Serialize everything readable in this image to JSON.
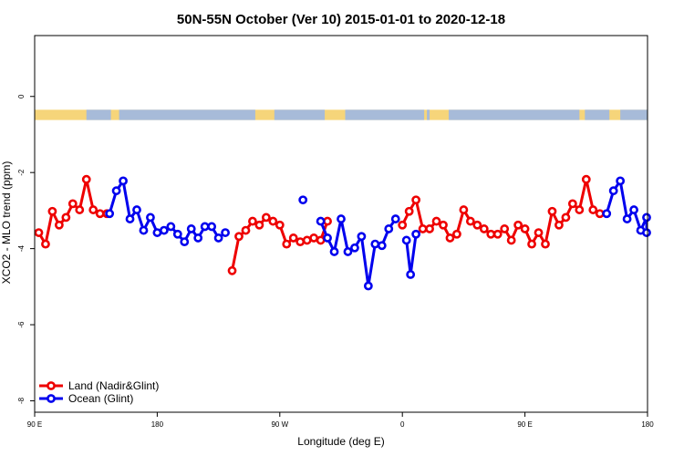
{
  "chart_data": {
    "type": "line",
    "title": "50N-55N October (Ver 10)   2015-01-01 to 2020-12-18",
    "xlabel": "Longitude (deg E)",
    "ylabel": "XCO2 - MLO trend (ppm)",
    "xlim": [
      90,
      540
    ],
    "ylim": [
      -8.3,
      1.6
    ],
    "x_ticks": [
      {
        "value": 90,
        "label": "90 E"
      },
      {
        "value": 180,
        "label": "180"
      },
      {
        "value": 270,
        "label": "90 W"
      },
      {
        "value": 360,
        "label": "0"
      },
      {
        "value": 450,
        "label": "90 E"
      },
      {
        "value": 540,
        "label": "180"
      }
    ],
    "y_ticks": [
      {
        "value": 0,
        "label": "0"
      },
      {
        "value": -2,
        "label": "-2"
      },
      {
        "value": -4,
        "label": "-4"
      },
      {
        "value": -6,
        "label": "-6"
      },
      {
        "value": -8,
        "label": "-8"
      }
    ],
    "legend_position": "bottom-left",
    "land_strip": {
      "y_range": [
        -0.35,
        -0.62
      ],
      "land_color": "#f6d57a",
      "ocean_color": "#a7bbd9"
    },
    "series": [
      {
        "name": "Land (Nadir&Glint)",
        "color": "#ee0000",
        "segments": [
          [
            [
              93,
              -3.58
            ],
            [
              98,
              -3.88
            ],
            [
              103,
              -3.02
            ],
            [
              108,
              -3.38
            ],
            [
              113,
              -3.18
            ],
            [
              118,
              -2.82
            ],
            [
              123,
              -2.98
            ],
            [
              128,
              -2.18
            ],
            [
              133,
              -2.98
            ],
            [
              138,
              -3.08
            ],
            [
              143,
              -3.08
            ]
          ],
          [
            [
              235,
              -4.58
            ],
            [
              240,
              -3.68
            ],
            [
              245,
              -3.52
            ],
            [
              250,
              -3.28
            ],
            [
              255,
              -3.38
            ],
            [
              260,
              -3.18
            ],
            [
              265,
              -3.28
            ],
            [
              270,
              -3.38
            ],
            [
              275,
              -3.88
            ],
            [
              280,
              -3.72
            ],
            [
              285,
              -3.82
            ],
            [
              290,
              -3.78
            ],
            [
              295,
              -3.72
            ],
            [
              300,
              -3.78
            ],
            [
              305,
              -3.28
            ]
          ],
          [
            [
              360,
              -3.38
            ],
            [
              365,
              -3.02
            ],
            [
              370,
              -2.72
            ],
            [
              375,
              -3.48
            ],
            [
              380,
              -3.48
            ],
            [
              385,
              -3.28
            ],
            [
              390,
              -3.38
            ],
            [
              395,
              -3.72
            ],
            [
              400,
              -3.62
            ],
            [
              405,
              -2.98
            ],
            [
              410,
              -3.28
            ],
            [
              415,
              -3.38
            ],
            [
              420,
              -3.48
            ],
            [
              425,
              -3.62
            ],
            [
              430,
              -3.62
            ],
            [
              435,
              -3.48
            ],
            [
              440,
              -3.78
            ],
            [
              445,
              -3.38
            ],
            [
              450,
              -3.48
            ],
            [
              455,
              -3.88
            ],
            [
              460,
              -3.58
            ],
            [
              465,
              -3.88
            ],
            [
              470,
              -3.02
            ],
            [
              475,
              -3.38
            ],
            [
              480,
              -3.18
            ],
            [
              485,
              -2.82
            ],
            [
              490,
              -2.98
            ],
            [
              495,
              -2.18
            ],
            [
              500,
              -2.98
            ],
            [
              505,
              -3.08
            ]
          ]
        ]
      },
      {
        "name": "Ocean (Glint)",
        "color": "#0000ee",
        "segments": [
          [
            [
              145,
              -3.08
            ],
            [
              150,
              -2.48
            ],
            [
              155,
              -2.22
            ],
            [
              160,
              -3.22
            ],
            [
              165,
              -2.98
            ],
            [
              170,
              -3.52
            ],
            [
              175,
              -3.18
            ],
            [
              180,
              -3.58
            ],
            [
              185,
              -3.52
            ],
            [
              190,
              -3.42
            ],
            [
              195,
              -3.62
            ],
            [
              200,
              -3.82
            ],
            [
              205,
              -3.48
            ],
            [
              210,
              -3.72
            ],
            [
              215,
              -3.42
            ],
            [
              220,
              -3.42
            ],
            [
              225,
              -3.72
            ],
            [
              230,
              -3.58
            ]
          ],
          [
            [
              300,
              -3.28
            ],
            [
              305,
              -3.72
            ],
            [
              310,
              -4.08
            ],
            [
              315,
              -3.22
            ],
            [
              320,
              -4.08
            ],
            [
              325,
              -3.98
            ],
            [
              330,
              -3.68
            ],
            [
              335,
              -4.98
            ],
            [
              340,
              -3.88
            ],
            [
              345,
              -3.92
            ],
            [
              350,
              -3.48
            ],
            [
              355,
              -3.22
            ]
          ],
          [
            [
              363,
              -3.78
            ],
            [
              366,
              -4.68
            ],
            [
              370,
              -3.62
            ]
          ],
          [
            [
              510,
              -3.08
            ],
            [
              515,
              -2.48
            ],
            [
              520,
              -2.22
            ],
            [
              525,
              -3.22
            ],
            [
              530,
              -2.98
            ],
            [
              535,
              -3.52
            ],
            [
              540,
              -3.18
            ],
            [
              543,
              -3.58
            ]
          ]
        ],
        "isolated_points": [
          [
            287,
            -2.72
          ]
        ]
      }
    ]
  }
}
